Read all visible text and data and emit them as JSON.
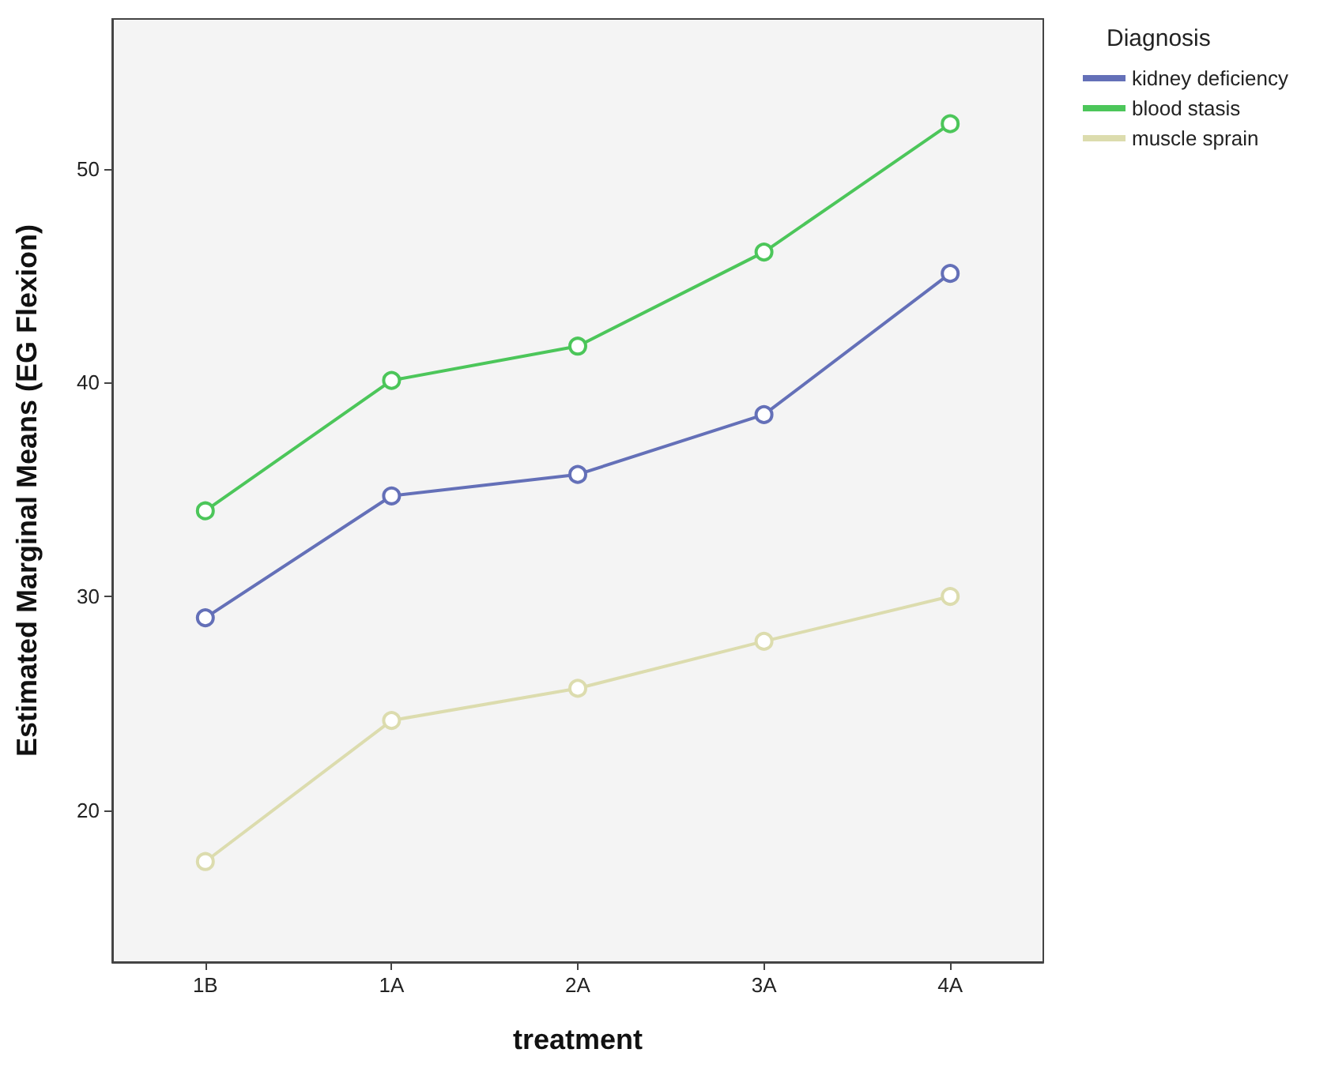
{
  "chart_data": {
    "type": "line",
    "xlabel": "treatment",
    "ylabel": "Estimated Marginal Means (EG Flexion)",
    "legend_title": "Diagnosis",
    "categories": [
      "1B",
      "1A",
      "2A",
      "3A",
      "4A"
    ],
    "series": [
      {
        "name": "kidney deficiency",
        "color": "#6470b8",
        "values": [
          29.0,
          34.7,
          35.7,
          38.5,
          45.1
        ]
      },
      {
        "name": "blood stasis",
        "color": "#4cc65a",
        "values": [
          34.0,
          40.1,
          41.7,
          46.1,
          52.1
        ]
      },
      {
        "name": "muscle sprain",
        "color": "#dcdcae",
        "values": [
          17.6,
          24.2,
          25.7,
          27.9,
          30.0
        ]
      }
    ],
    "ylim": [
      12.9,
      57
    ],
    "yticks": [
      20,
      30,
      40,
      50
    ],
    "grid": false,
    "legend": "top right",
    "marker": "circle",
    "line_style": "solid"
  }
}
